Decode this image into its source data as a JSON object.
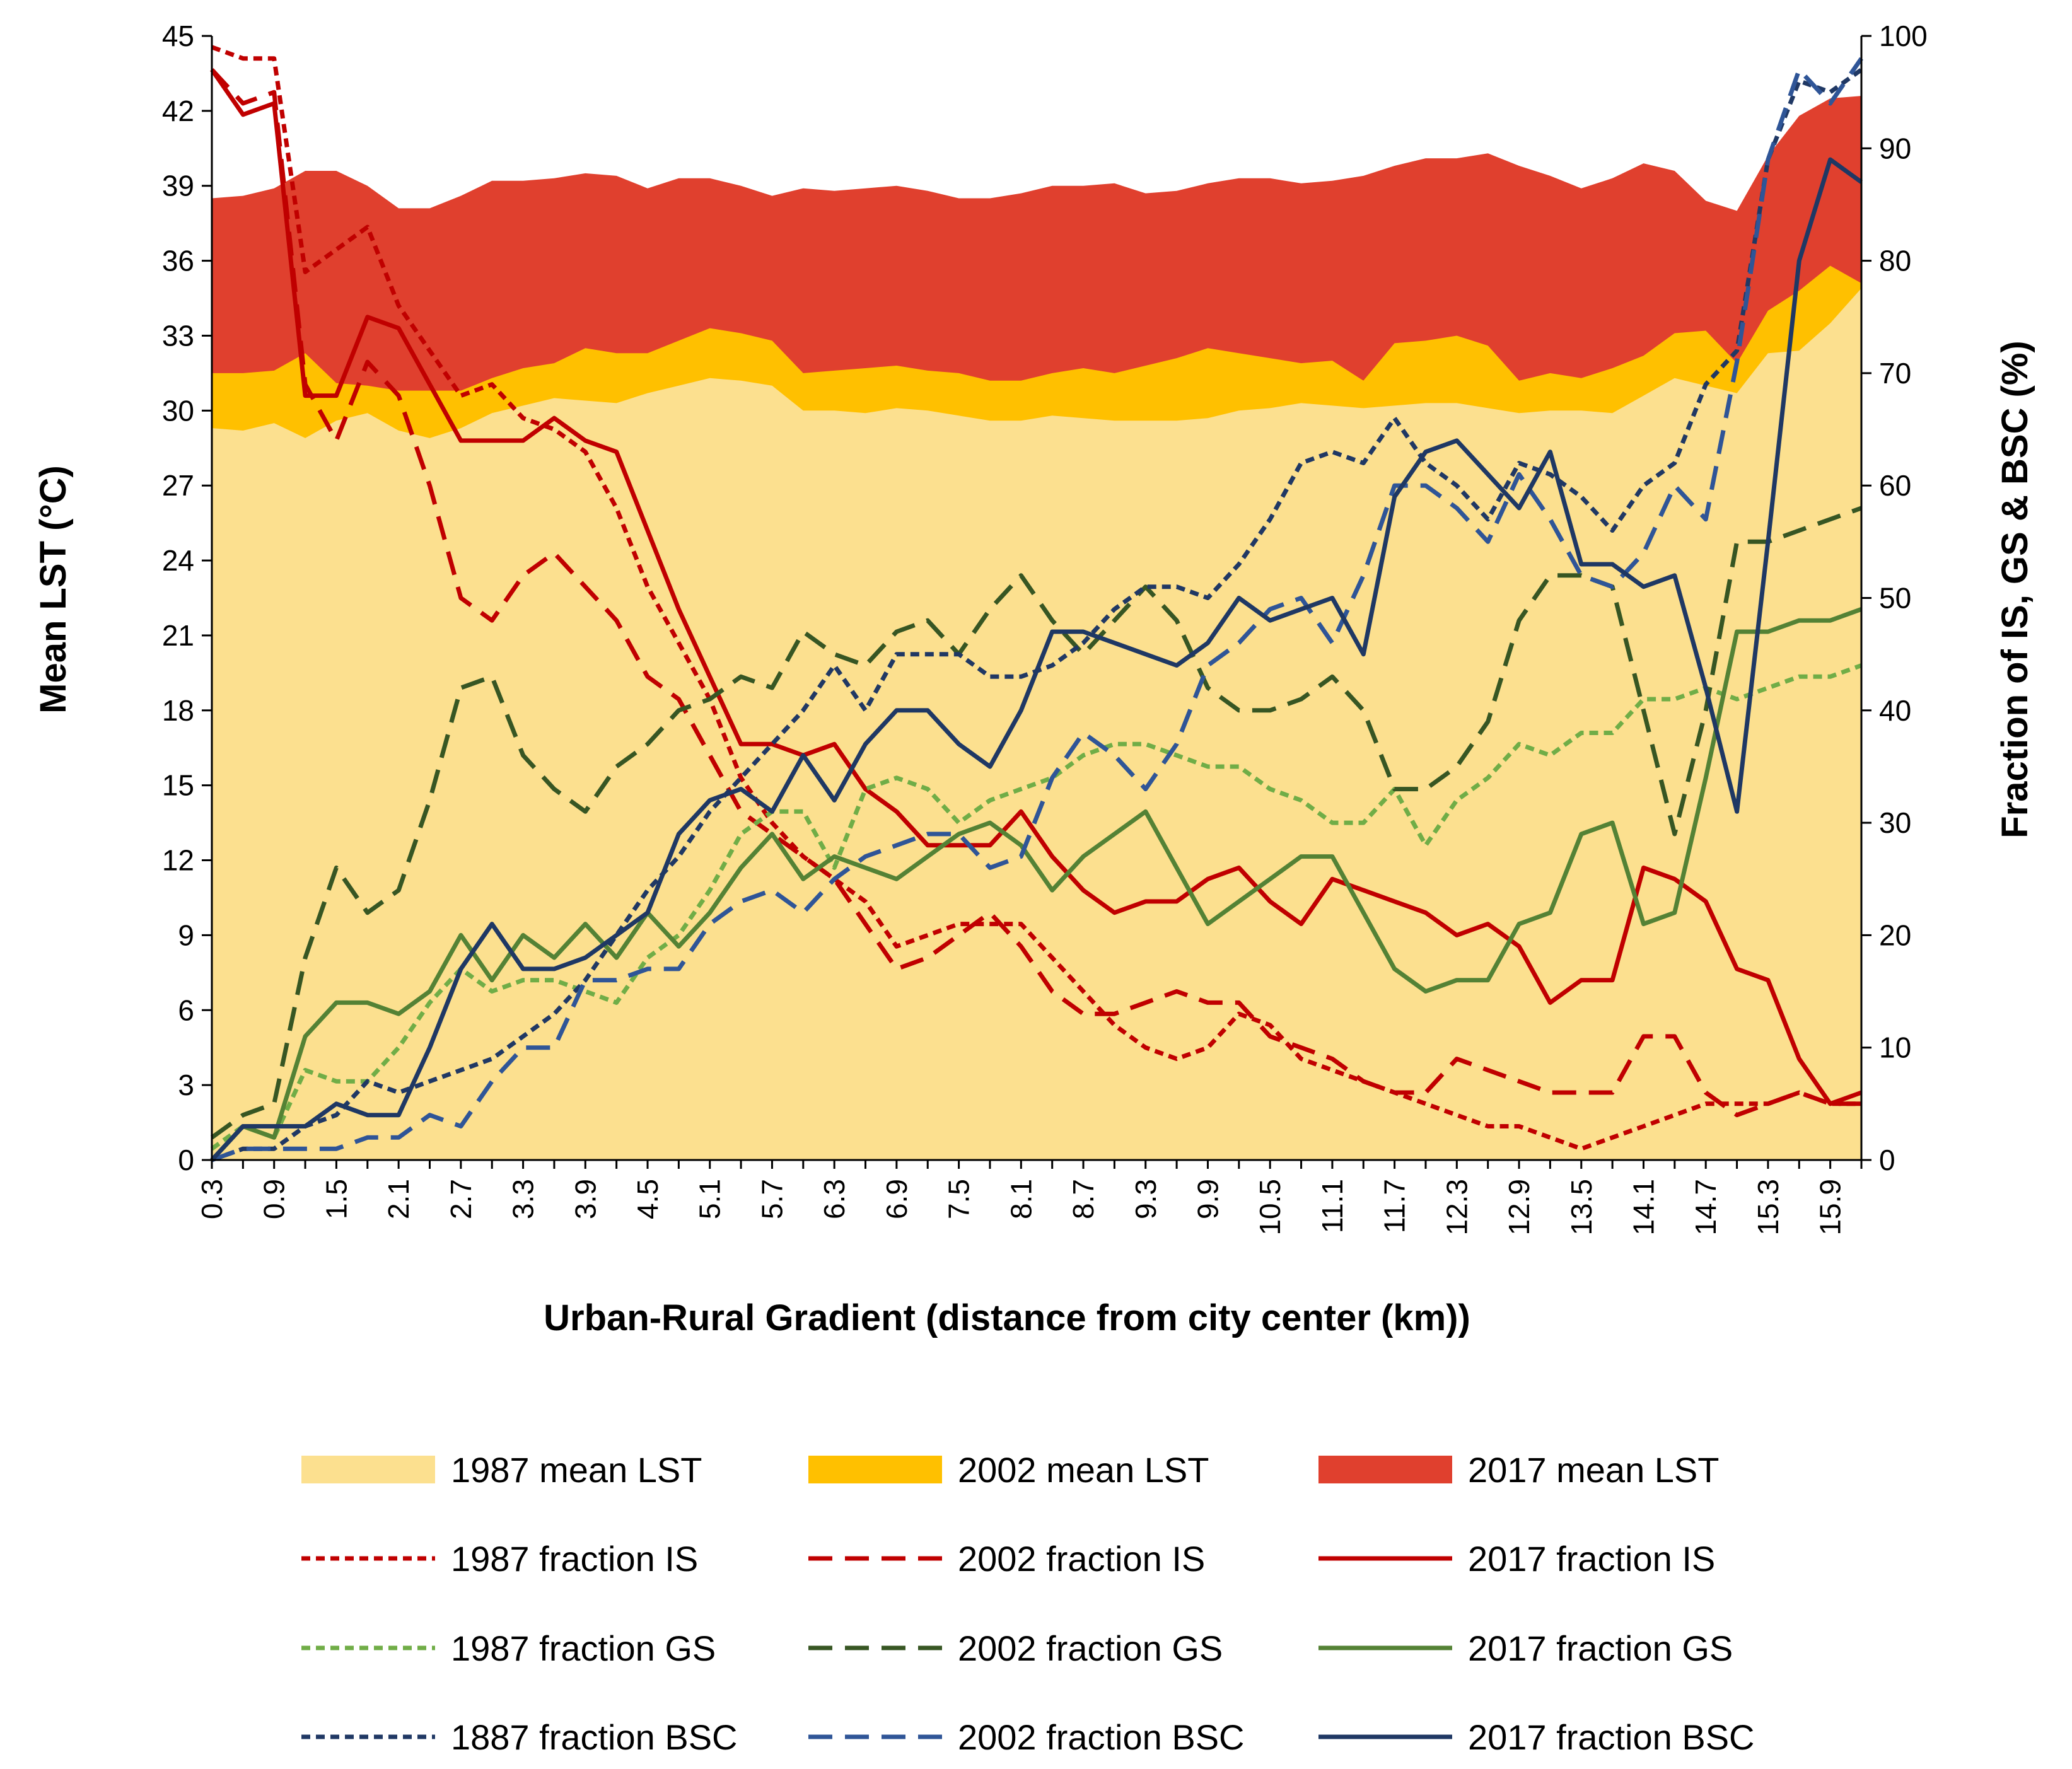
{
  "chart_data": {
    "type": "line",
    "title": "",
    "xlabel": "Urban-Rural Gradient (distance from city center (km))",
    "ylabel_left": "Mean LST (°C)",
    "ylabel_right": "Fraction of IS, GS & BSC (%)",
    "ylim_left": [
      0,
      45
    ],
    "ylim_right": [
      0,
      100
    ],
    "yticks_left": [
      "0",
      "3",
      "6",
      "9",
      "12",
      "15",
      "18",
      "21",
      "24",
      "27",
      "30",
      "33",
      "36",
      "39",
      "42",
      "45"
    ],
    "yticks_right": [
      "0",
      "10",
      "20",
      "30",
      "40",
      "50",
      "60",
      "70",
      "80",
      "90",
      "100"
    ],
    "x_tick_labels": [
      "0.3",
      "0.9",
      "1.5",
      "2.1",
      "2.7",
      "3.3",
      "3.9",
      "4.5",
      "5.1",
      "5.7",
      "6.3",
      "6.9",
      "7.5",
      "8.1",
      "8.7",
      "9.3",
      "9.9",
      "10.5",
      "11.1",
      "11.7",
      "12.3",
      "12.9",
      "13.5",
      "14.1",
      "14.7",
      "15.3",
      "15.9"
    ],
    "x": [
      0.3,
      0.6,
      0.9,
      1.2,
      1.5,
      1.8,
      2.1,
      2.4,
      2.7,
      3.0,
      3.3,
      3.6,
      3.9,
      4.2,
      4.5,
      4.8,
      5.1,
      5.4,
      5.7,
      6.0,
      6.3,
      6.6,
      6.9,
      7.2,
      7.5,
      7.8,
      8.1,
      8.4,
      8.7,
      9.0,
      9.3,
      9.6,
      9.9,
      10.2,
      10.5,
      10.8,
      11.1,
      11.4,
      11.7,
      12.0,
      12.3,
      12.6,
      12.9,
      13.2,
      13.5,
      13.8,
      14.1,
      14.4,
      14.7,
      15.0,
      15.3,
      15.6,
      15.9,
      16.2
    ],
    "area_series": [
      {
        "name": "2017 mean LST",
        "color": "#E0402E",
        "axis": "left",
        "values": [
          38.5,
          38.6,
          38.9,
          39.6,
          39.6,
          39.0,
          38.1,
          38.1,
          38.6,
          39.2,
          39.2,
          39.3,
          39.5,
          39.4,
          38.9,
          39.3,
          39.3,
          39.0,
          38.6,
          38.9,
          38.8,
          38.9,
          39.0,
          38.8,
          38.5,
          38.5,
          38.7,
          39.0,
          39.0,
          39.1,
          38.7,
          38.8,
          39.1,
          39.3,
          39.3,
          39.1,
          39.2,
          39.4,
          39.8,
          40.1,
          40.1,
          40.3,
          39.8,
          39.4,
          38.9,
          39.3,
          39.9,
          39.6,
          38.4,
          38.0,
          40.2,
          41.8,
          42.5,
          42.6
        ]
      },
      {
        "name": "2002 mean LST",
        "color": "#FFC000",
        "axis": "left",
        "values": [
          31.5,
          31.5,
          31.6,
          32.3,
          31.1,
          31.0,
          30.8,
          30.8,
          30.8,
          31.3,
          31.7,
          31.9,
          32.5,
          32.3,
          32.3,
          32.8,
          33.3,
          33.1,
          32.8,
          31.5,
          31.6,
          31.7,
          31.8,
          31.6,
          31.5,
          31.2,
          31.2,
          31.5,
          31.7,
          31.5,
          31.8,
          32.1,
          32.5,
          32.3,
          32.1,
          31.9,
          32.0,
          31.2,
          32.7,
          32.8,
          33.0,
          32.6,
          31.2,
          31.5,
          31.3,
          31.7,
          32.2,
          33.1,
          33.2,
          31.9,
          34.0,
          34.8,
          35.8,
          35.1
        ]
      },
      {
        "name": "1987 mean LST",
        "color": "#FCE08F",
        "axis": "left",
        "values": [
          29.3,
          29.2,
          29.5,
          28.9,
          29.6,
          29.9,
          29.2,
          28.9,
          29.3,
          29.9,
          30.2,
          30.5,
          30.4,
          30.3,
          30.7,
          31.0,
          31.3,
          31.2,
          31.0,
          30.0,
          30.0,
          29.9,
          30.1,
          30.0,
          29.8,
          29.6,
          29.6,
          29.8,
          29.7,
          29.6,
          29.6,
          29.6,
          29.7,
          30.0,
          30.1,
          30.3,
          30.2,
          30.1,
          30.2,
          30.3,
          30.3,
          30.1,
          29.9,
          30.0,
          30.0,
          29.9,
          30.6,
          31.3,
          31.0,
          30.7,
          32.3,
          32.4,
          33.5,
          34.9
        ]
      }
    ],
    "line_series": [
      {
        "name": "1987 fraction IS",
        "color": "#C00000",
        "dash": "short",
        "axis": "right",
        "values": [
          99,
          98,
          98,
          79,
          81,
          83,
          76,
          72,
          68,
          69,
          66,
          65,
          63,
          58,
          51,
          46,
          41,
          34,
          30,
          27,
          25,
          23,
          19,
          20,
          21,
          21,
          21,
          18,
          15,
          12,
          10,
          9,
          10,
          13,
          12,
          9,
          8,
          7,
          6,
          5,
          4,
          3,
          3,
          2,
          1,
          2,
          3,
          4,
          5,
          5,
          5,
          6,
          5,
          5
        ]
      },
      {
        "name": "2002 fraction IS",
        "color": "#C00000",
        "dash": "long",
        "axis": "right",
        "values": [
          97,
          94,
          95,
          69,
          64,
          71,
          68,
          60,
          50,
          48,
          52,
          54,
          51,
          48,
          43,
          41,
          36,
          31,
          29,
          27,
          25,
          21,
          17,
          18,
          20,
          22,
          19,
          15,
          13,
          13,
          14,
          15,
          14,
          14,
          11,
          10,
          9,
          7,
          6,
          6,
          9,
          8,
          7,
          6,
          6,
          6,
          11,
          11,
          6,
          4,
          5,
          6,
          5,
          5
        ]
      },
      {
        "name": "2017 fraction IS",
        "color": "#C00000",
        "dash": "solid",
        "axis": "right",
        "values": [
          97,
          93,
          94,
          68,
          68,
          75,
          74,
          69,
          64,
          64,
          64,
          66,
          64,
          63,
          56,
          49,
          43,
          37,
          37,
          36,
          37,
          33,
          31,
          28,
          28,
          28,
          31,
          27,
          24,
          22,
          23,
          23,
          25,
          26,
          23,
          21,
          25,
          24,
          23,
          22,
          20,
          21,
          19,
          14,
          16,
          16,
          26,
          25,
          23,
          17,
          16,
          9,
          5,
          6
        ]
      },
      {
        "name": "1987 fraction GS",
        "color": "#70AD47",
        "dash": "short",
        "axis": "right",
        "values": [
          1,
          3,
          2,
          8,
          7,
          7,
          10,
          14,
          17,
          15,
          16,
          16,
          15,
          14,
          18,
          20,
          24,
          29,
          31,
          31,
          26,
          33,
          34,
          33,
          30,
          32,
          33,
          34,
          36,
          37,
          37,
          36,
          35,
          35,
          33,
          32,
          30,
          30,
          33,
          28,
          32,
          34,
          37,
          36,
          38,
          38,
          41,
          41,
          42,
          41,
          42,
          43,
          43,
          44
        ]
      },
      {
        "name": "2002 fraction GS",
        "color": "#375623",
        "dash": "long",
        "axis": "right",
        "values": [
          2,
          4,
          5,
          18,
          26,
          22,
          24,
          32,
          42,
          43,
          36,
          33,
          31,
          35,
          37,
          40,
          41,
          43,
          42,
          47,
          45,
          44,
          47,
          48,
          45,
          49,
          52,
          48,
          45,
          48,
          51,
          48,
          42,
          40,
          40,
          41,
          43,
          40,
          33,
          33,
          35,
          39,
          48,
          52,
          52,
          51,
          40,
          29,
          40,
          55,
          55,
          56,
          57,
          58
        ]
      },
      {
        "name": "2017 fraction GS",
        "color": "#548235",
        "dash": "solid",
        "axis": "right",
        "values": [
          0,
          3,
          2,
          11,
          14,
          14,
          13,
          15,
          20,
          16,
          20,
          18,
          21,
          18,
          22,
          19,
          22,
          26,
          29,
          25,
          27,
          26,
          25,
          27,
          29,
          30,
          28,
          24,
          27,
          29,
          31,
          26,
          21,
          23,
          25,
          27,
          27,
          22,
          17,
          15,
          16,
          16,
          21,
          22,
          29,
          30,
          21,
          22,
          34,
          47,
          47,
          48,
          48,
          49
        ]
      },
      {
        "name": "1887 fraction BSC",
        "color": "#203864",
        "dash": "short",
        "axis": "right",
        "values": [
          0,
          1,
          1,
          3,
          4,
          7,
          6,
          7,
          8,
          9,
          11,
          13,
          16,
          20,
          24,
          27,
          31,
          34,
          37,
          40,
          44,
          40,
          45,
          45,
          45,
          43,
          43,
          44,
          46,
          49,
          51,
          51,
          50,
          53,
          57,
          62,
          63,
          62,
          66,
          62,
          60,
          57,
          62,
          61,
          59,
          56,
          60,
          62,
          69,
          72,
          89,
          96,
          95,
          97
        ]
      },
      {
        "name": "2002 fraction BSC",
        "color": "#2F5597",
        "dash": "long",
        "axis": "right",
        "values": [
          0,
          1,
          1,
          1,
          1,
          2,
          2,
          4,
          3,
          7,
          10,
          10,
          16,
          16,
          17,
          17,
          21,
          23,
          24,
          22,
          25,
          27,
          28,
          29,
          29,
          26,
          27,
          34,
          38,
          36,
          33,
          37,
          44,
          46,
          49,
          50,
          46,
          52,
          60,
          60,
          58,
          55,
          61,
          57,
          52,
          51,
          54,
          60,
          57,
          71,
          89,
          97,
          94,
          98
        ]
      },
      {
        "name": "2017 fraction BSC",
        "color": "#1F3864",
        "dash": "solid",
        "axis": "right",
        "values": [
          0,
          3,
          3,
          3,
          5,
          4,
          4,
          10,
          17,
          21,
          17,
          17,
          18,
          20,
          22,
          29,
          32,
          33,
          31,
          36,
          32,
          37,
          40,
          40,
          37,
          35,
          40,
          47,
          47,
          46,
          45,
          44,
          46,
          50,
          48,
          49,
          50,
          45,
          59,
          63,
          64,
          61,
          58,
          63,
          53,
          53,
          51,
          52,
          42,
          31,
          55,
          80,
          89,
          87
        ]
      }
    ],
    "legend": [
      {
        "label": "1987 mean LST",
        "kind": "area",
        "color": "#FCE08F"
      },
      {
        "label": "2002 mean LST",
        "kind": "area",
        "color": "#FFC000"
      },
      {
        "label": "2017 mean LST",
        "kind": "area",
        "color": "#E0402E"
      },
      {
        "label": "1987 fraction IS",
        "kind": "short",
        "color": "#C00000"
      },
      {
        "label": "2002 fraction IS",
        "kind": "long",
        "color": "#C00000"
      },
      {
        "label": "2017 fraction IS",
        "kind": "solid",
        "color": "#C00000"
      },
      {
        "label": "1987 fraction GS",
        "kind": "short",
        "color": "#70AD47"
      },
      {
        "label": "2002 fraction GS",
        "kind": "long",
        "color": "#375623"
      },
      {
        "label": "2017 fraction GS",
        "kind": "solid",
        "color": "#548235"
      },
      {
        "label": "1887 fraction BSC",
        "kind": "short",
        "color": "#203864"
      },
      {
        "label": "2002 fraction BSC",
        "kind": "long",
        "color": "#2F5597"
      },
      {
        "label": "2017 fraction BSC",
        "kind": "solid",
        "color": "#1F3864"
      }
    ]
  }
}
